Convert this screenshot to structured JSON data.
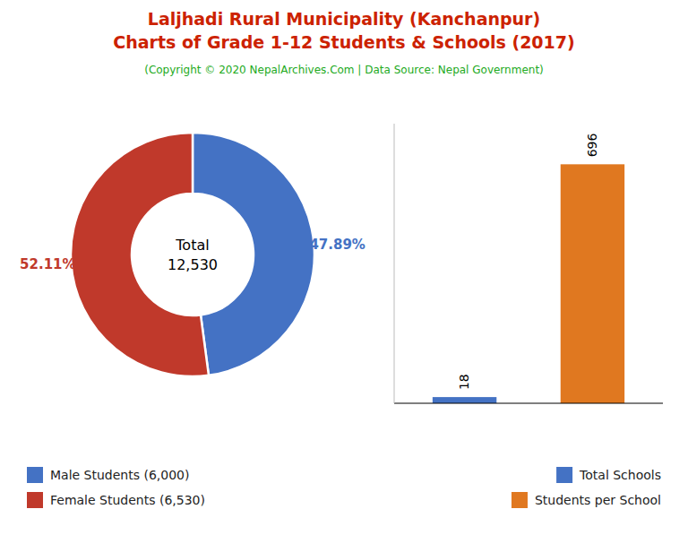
{
  "title": [
    "Laljhadi Rural Municipality (Kanchanpur)",
    "Charts of Grade 1-12 Students & Schools (2017)"
  ],
  "subtitle": "(Copyright © 2020 NepalArchives.Com | Data Source: Nepal Government)",
  "chart_data": [
    {
      "type": "donut",
      "categories": [
        "Male Students (6,000)",
        "Female Students (6,530)"
      ],
      "values": [
        47.89,
        52.11
      ],
      "value_labels": [
        "47.89%",
        "52.11%"
      ],
      "colors": [
        "#4472c4",
        "#c0392b"
      ],
      "annotations": [
        "Total",
        "12,530"
      ],
      "data_labels": true,
      "legend": "bottom left"
    },
    {
      "type": "bar",
      "categories": [
        "Total Schools",
        "Students per School"
      ],
      "values": [
        18,
        696
      ],
      "colors": [
        "#4472c4",
        "#e07820"
      ],
      "ylim": [
        0,
        814.32
      ],
      "tick_labels": false,
      "data_labels": true,
      "legend": "bottom right"
    }
  ]
}
